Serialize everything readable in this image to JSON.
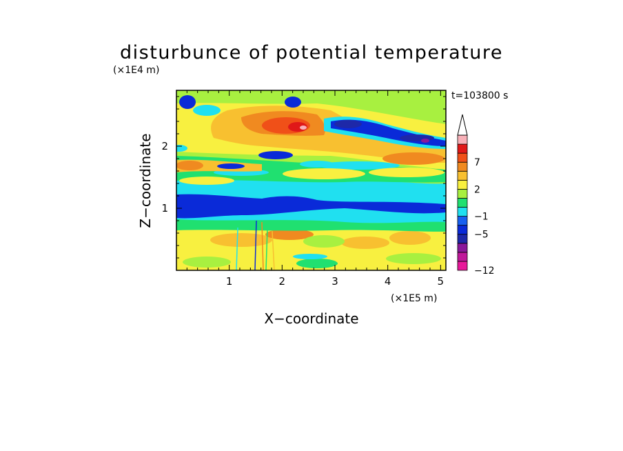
{
  "chart_data": {
    "type": "heatmap",
    "title": "disturbunce of potential temperature",
    "time_label": "t=103800 s",
    "xlabel": "X−coordinate",
    "ylabel": "Z−coordinate",
    "x_scale_label": "(×1E5 m)",
    "y_scale_label": "(×1E4 m)",
    "xlim": [
      0,
      5.1
    ],
    "ylim": [
      0,
      2.9
    ],
    "x_ticks": [
      {
        "value": 1,
        "label": "1"
      },
      {
        "value": 2,
        "label": "2"
      },
      {
        "value": 3,
        "label": "3"
      },
      {
        "value": 4,
        "label": "4"
      },
      {
        "value": 5,
        "label": "5"
      }
    ],
    "y_ticks": [
      {
        "value": 1,
        "label": "1"
      },
      {
        "value": 2,
        "label": "2"
      }
    ],
    "colorbar": {
      "levels_from_bottom": [
        -12,
        -11,
        -9,
        -7,
        -5,
        -3,
        -1,
        0,
        1,
        2,
        3,
        5,
        7,
        9,
        11
      ],
      "colors_from_bottom": [
        "#e8189a",
        "#c0189a",
        "#8a189a",
        "#1e28a8",
        "#0a2ad8",
        "#1860f0",
        "#20e0f0",
        "#20e070",
        "#a8f040",
        "#f8f040",
        "#f8c030",
        "#f08a20",
        "#f05018",
        "#e01818",
        "#f8b0b8"
      ],
      "tick_labels": [
        {
          "value": -12,
          "label": "−12"
        },
        {
          "value": -5,
          "label": "−5"
        },
        {
          "value": -1,
          "label": "−1"
        },
        {
          "value": 2,
          "label": "2"
        },
        {
          "value": 7,
          "label": "7"
        }
      ],
      "extend_top": true
    }
  }
}
